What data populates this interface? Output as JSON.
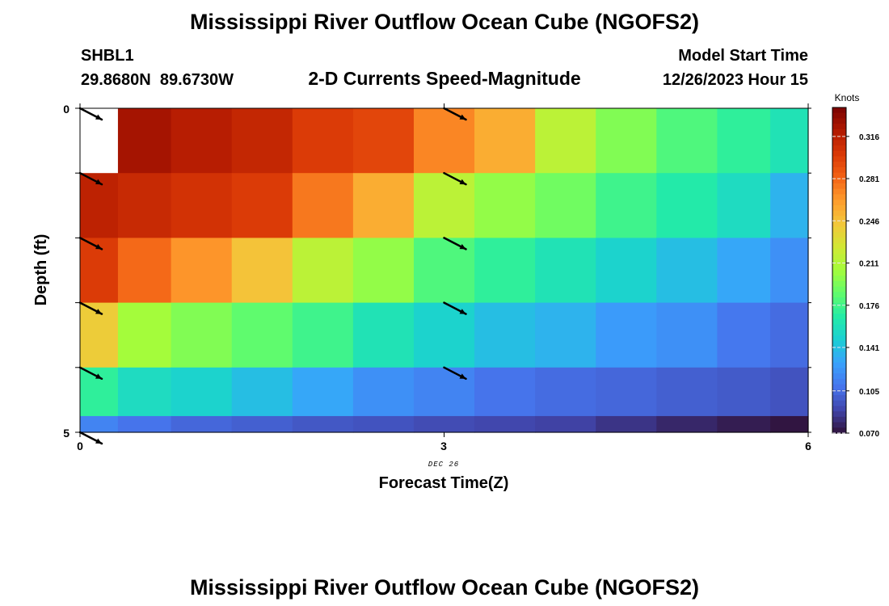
{
  "page": {
    "title": "Mississippi River Outflow Ocean Cube (NGOFS2)",
    "title_repeat": "Mississippi River Outflow Ocean Cube (NGOFS2)",
    "station": "SHBL1",
    "coordinates": "29.8680N  89.6730W",
    "subtitle": "2-D Currents Speed-Magnitude",
    "model_start_label": "Model Start Time",
    "model_start_value": "12/26/2023 Hour 15"
  },
  "chart_data": {
    "type": "heatmap",
    "title": "2-D Currents Speed-Magnitude",
    "xlabel": "Forecast Time(Z)",
    "ylabel": "Depth (ft)",
    "x_date_label": "DEC 26",
    "x_ticks": [
      "0",
      "3",
      "6"
    ],
    "y_ticks": [
      "0",
      "5"
    ],
    "xlim": [
      0,
      6
    ],
    "ylim": [
      0,
      5
    ],
    "y_inverted": true,
    "x_centers": [
      0.125,
      0.5,
      1.0,
      1.5,
      2.0,
      2.5,
      3.0,
      3.5,
      4.0,
      4.5,
      5.0,
      5.5,
      5.875
    ],
    "y_centers": [
      0.5,
      1.5,
      2.5,
      3.5,
      4.5,
      5.0
    ],
    "values": [
      [
        null,
        0.325,
        0.318,
        0.312,
        0.3,
        0.295,
        0.27,
        0.255,
        0.215,
        0.195,
        0.18,
        0.17,
        0.16
      ],
      [
        0.315,
        0.31,
        0.305,
        0.3,
        0.275,
        0.255,
        0.215,
        0.2,
        0.19,
        0.175,
        0.165,
        0.155,
        0.135
      ],
      [
        0.3,
        0.28,
        0.265,
        0.245,
        0.215,
        0.2,
        0.18,
        0.17,
        0.16,
        0.15,
        0.14,
        0.13,
        0.12
      ],
      [
        0.24,
        0.205,
        0.195,
        0.185,
        0.175,
        0.16,
        0.15,
        0.14,
        0.135,
        0.125,
        0.12,
        0.11,
        0.105
      ],
      [
        0.17,
        0.155,
        0.15,
        0.14,
        0.13,
        0.12,
        0.115,
        0.108,
        0.105,
        0.103,
        0.1,
        0.098,
        0.095
      ],
      [
        0.115,
        0.108,
        0.103,
        0.1,
        0.097,
        0.095,
        0.092,
        0.09,
        0.088,
        0.083,
        0.078,
        0.074,
        0.071
      ]
    ],
    "vectors": [
      {
        "x": 0.0,
        "y": 0.0
      },
      {
        "x": 3.0,
        "y": 0.0
      },
      {
        "x": 0.0,
        "y": 1.0
      },
      {
        "x": 3.0,
        "y": 1.0
      },
      {
        "x": 0.0,
        "y": 2.0
      },
      {
        "x": 3.0,
        "y": 2.0
      },
      {
        "x": 0.0,
        "y": 3.0
      },
      {
        "x": 3.0,
        "y": 3.0
      },
      {
        "x": 0.0,
        "y": 4.0
      },
      {
        "x": 3.0,
        "y": 4.0
      },
      {
        "x": 0.0,
        "y": 5.0
      }
    ],
    "vector_direction": "southeast",
    "colorbar": {
      "label": "Knots",
      "min": 0.07,
      "max": 0.34,
      "ticks": [
        "0.316",
        "0.281",
        "0.246",
        "0.211",
        "0.176",
        "0.141",
        "0.105",
        "0.070"
      ],
      "tick_values": [
        0.316,
        0.281,
        0.246,
        0.211,
        0.176,
        0.141,
        0.105,
        0.07
      ],
      "colors": [
        "#30123b",
        "#4145ab",
        "#4675ed",
        "#39a2fc",
        "#1bcfd4",
        "#24eca6",
        "#61fc6c",
        "#a4fc3b",
        "#d1e834",
        "#f3c63a",
        "#fe9b2d",
        "#f36315",
        "#d93806",
        "#b11901",
        "#7a0402"
      ]
    },
    "grid": false,
    "legend": "right"
  }
}
